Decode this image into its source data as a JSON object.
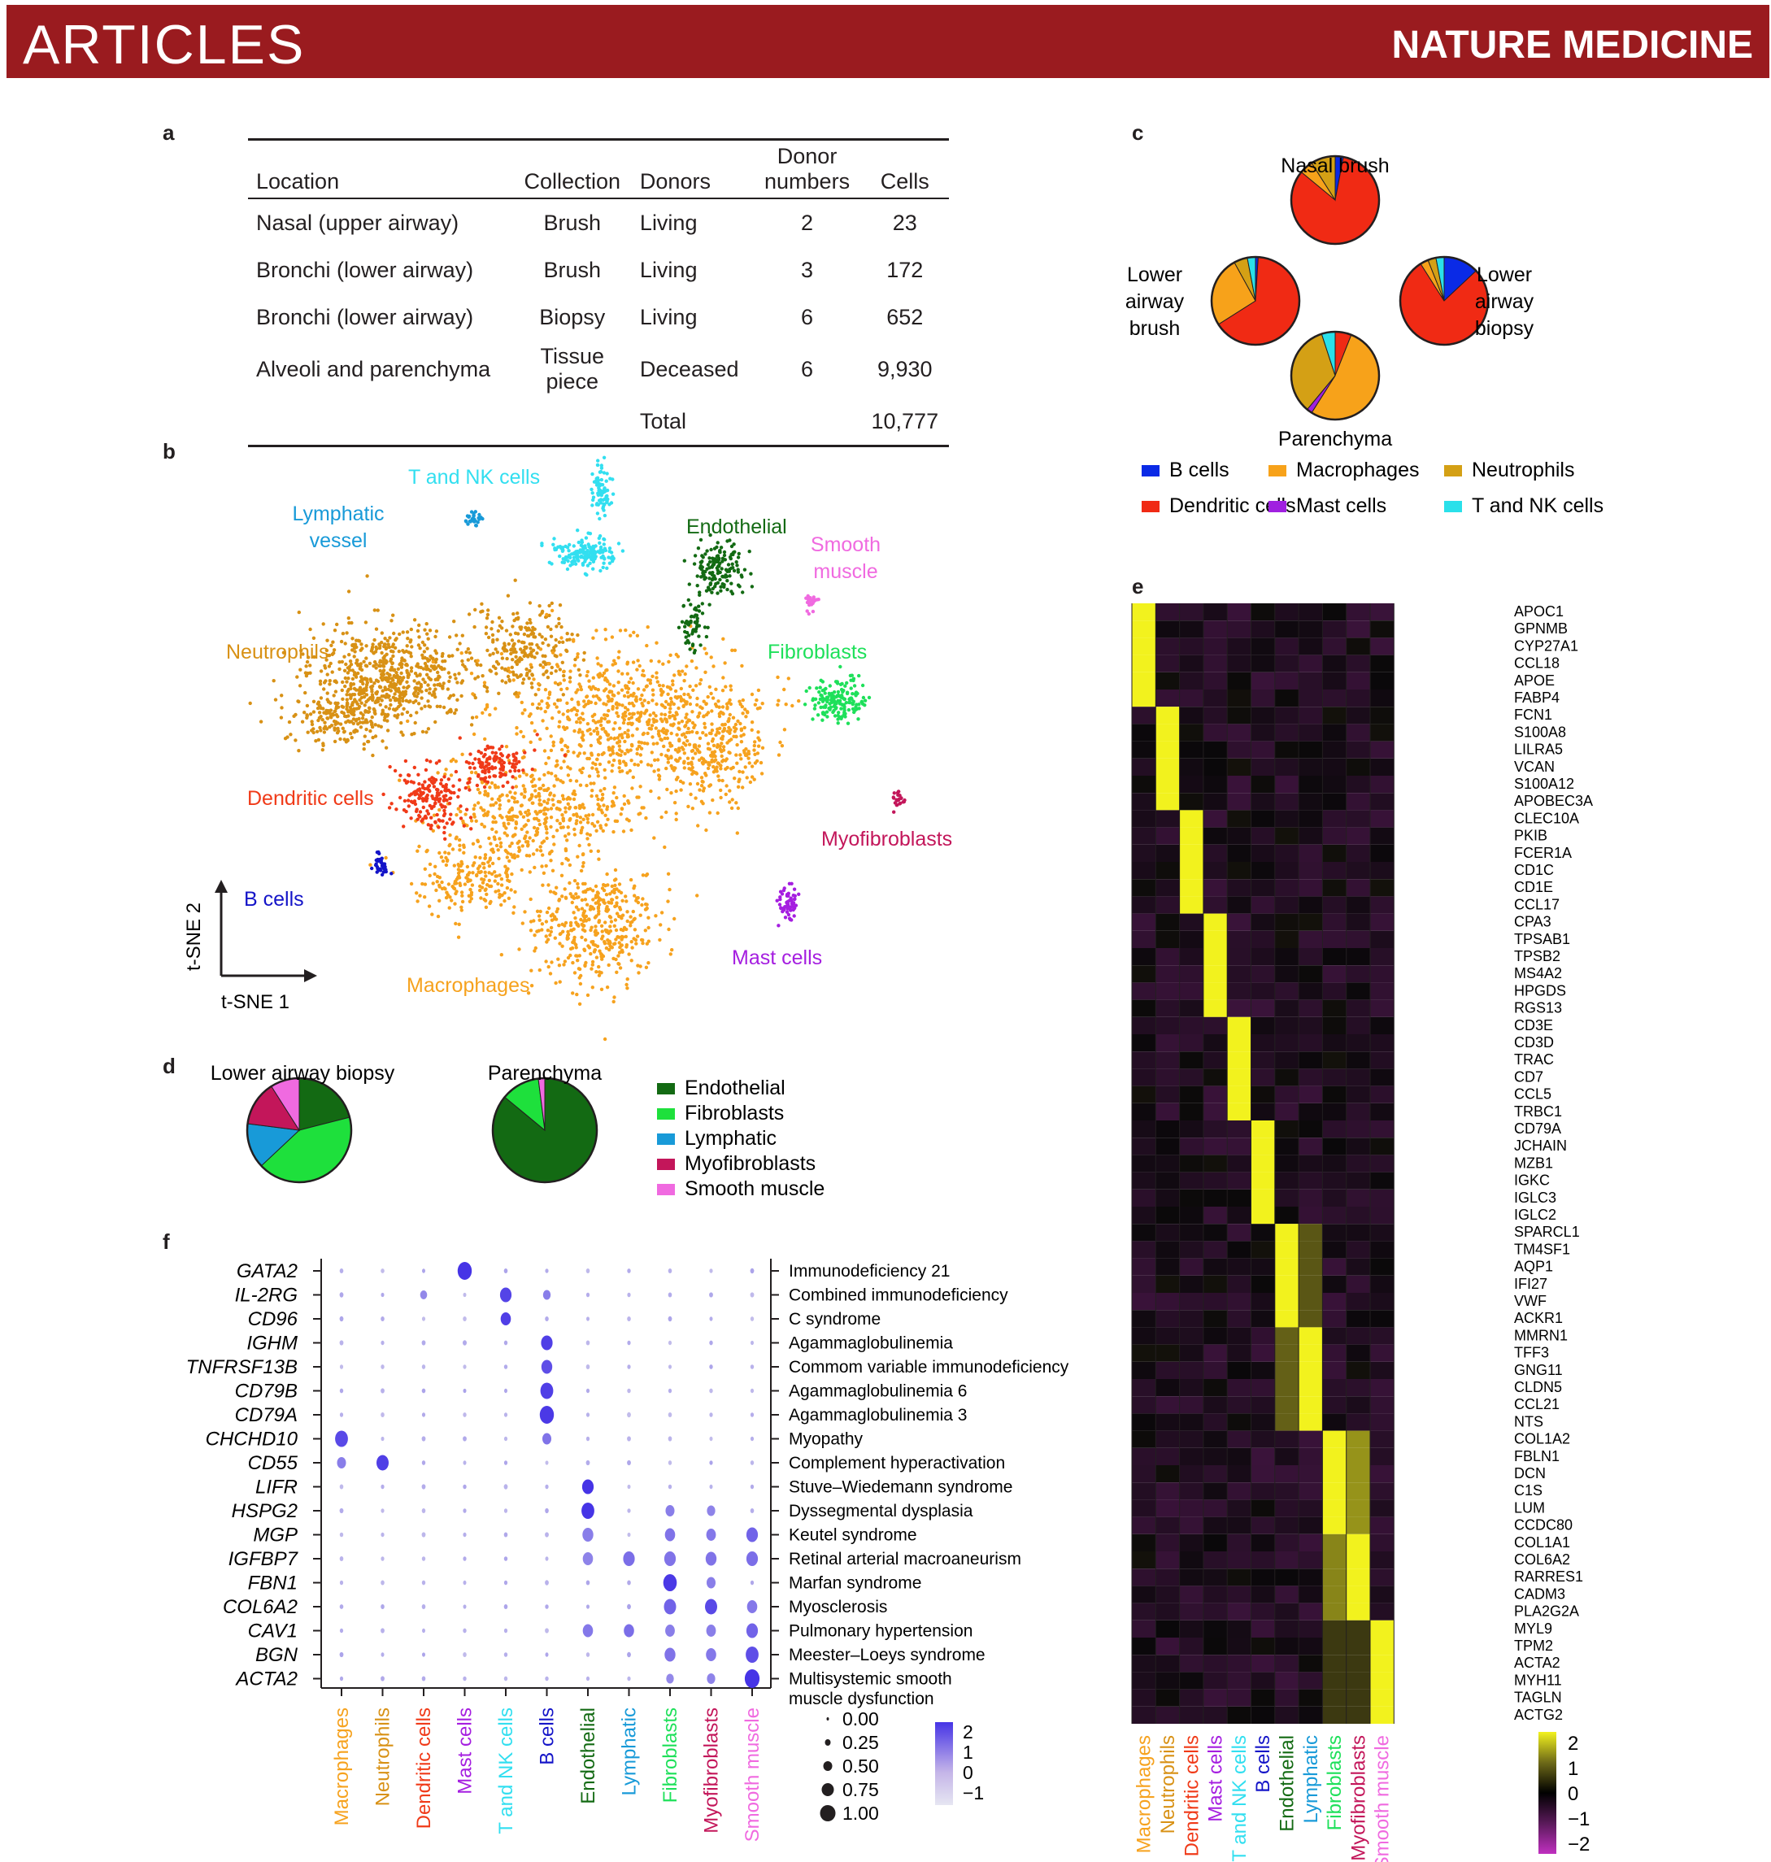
{
  "header": {
    "section": "ARTICLES",
    "journal": "NATURE MEDICINE"
  },
  "panels": {
    "a": "a",
    "b": "b",
    "c": "c",
    "d": "d",
    "e": "e",
    "f": "f"
  },
  "table_a": {
    "headers": {
      "location": "Location",
      "collection": "Collection",
      "donors": "Donors",
      "donor_numbers_1": "Donor",
      "donor_numbers_2": "numbers",
      "cells": "Cells"
    },
    "rows": [
      {
        "location": "Nasal (upper airway)",
        "collection": "Brush",
        "donors": "Living",
        "donor_numbers": "2",
        "cells": "23"
      },
      {
        "location": "Bronchi (lower airway)",
        "collection": "Brush",
        "donors": "Living",
        "donor_numbers": "3",
        "cells": "172"
      },
      {
        "location": "Bronchi (lower airway)",
        "collection": "Biopsy",
        "donors": "Living",
        "donor_numbers": "6",
        "cells": "652"
      },
      {
        "location": "Alveoli and parenchyma",
        "collection_1": "Tissue",
        "collection_2": "piece",
        "donors": "Deceased",
        "donor_numbers": "6",
        "cells": "9,930"
      }
    ],
    "total_label": "Total",
    "total_cells": "10,777"
  },
  "tsne": {
    "axis_y": "t-SNE 2",
    "axis_x": "t-SNE 1",
    "clusters": [
      {
        "name": "Macrophages",
        "color": "#f6a21e"
      },
      {
        "name": "Neutrophils",
        "color": "#d89115"
      },
      {
        "name": "Dendritic cells",
        "color": "#f03a18"
      },
      {
        "name": "B cells",
        "color": "#1414c8"
      },
      {
        "name": "T and NK cells",
        "color": "#32dff0"
      },
      {
        "name": "Lymphatic vessel",
        "color": "#189ad8"
      },
      {
        "name": "Endothelial",
        "color": "#136a13"
      },
      {
        "name": "Smooth muscle",
        "color": "#f06ae0"
      },
      {
        "name": "Fibroblasts",
        "color": "#1ee05a"
      },
      {
        "name": "Myofibroblasts",
        "color": "#c3165a"
      },
      {
        "name": "Mast cells",
        "color": "#a51ee0"
      }
    ],
    "labels": {
      "t_nk": "T and NK cells",
      "lymph_1": "Lymphatic",
      "lymph_2": "vessel",
      "endothelial": "Endothelial",
      "smooth_1": "Smooth",
      "smooth_2": "muscle",
      "neutrophils": "Neutrophils",
      "fibroblasts": "Fibroblasts",
      "dendritic": "Dendritic cells",
      "myofibroblasts": "Myofibroblasts",
      "b_cells": "B cells",
      "mast": "Mast cells",
      "macrophages": "Macrophages"
    }
  },
  "chart_data": [
    {
      "type": "pie",
      "panel": "c",
      "title": "Nasal brush",
      "categories": [
        "B cells",
        "Dendritic cells",
        "Macrophages",
        "Mast cells",
        "Neutrophils",
        "T and NK cells"
      ],
      "colors": [
        "#0a2ae6",
        "#f02a14",
        "#f7a21a",
        "#a020e0",
        "#d4a015",
        "#2ae0ea"
      ],
      "pies": [
        {
          "label": "Nasal brush",
          "values": [
            3,
            83,
            5,
            0,
            9,
            0
          ]
        },
        {
          "label_lines": [
            "Lower",
            "airway",
            "brush"
          ],
          "values": [
            1,
            65,
            26,
            0,
            5,
            3
          ]
        },
        {
          "label_lines": [
            "Lower",
            "airway",
            "biopsy"
          ],
          "values": [
            13,
            78,
            3,
            0,
            3,
            3
          ]
        },
        {
          "label": "Parenchyma",
          "values": [
            0,
            6,
            53,
            2,
            34,
            5
          ]
        }
      ]
    },
    {
      "type": "pie",
      "panel": "d",
      "categories": [
        "Endothelial",
        "Fibroblasts",
        "Lymphatic",
        "Myofibroblasts",
        "Smooth muscle"
      ],
      "colors": [
        "#136a13",
        "#1ee03c",
        "#189ad8",
        "#c3165a",
        "#f06ae0"
      ],
      "pies": [
        {
          "label": "Lower airway biopsy",
          "values": [
            21,
            42,
            14,
            14,
            9
          ]
        },
        {
          "label": "Parenchyma",
          "values": [
            86,
            12,
            0,
            0,
            2
          ]
        }
      ]
    },
    {
      "type": "heatmap",
      "panel": "e",
      "columns": [
        "Macrophages",
        "Neutrophils",
        "Dendritic cells",
        "Mast cells",
        "T and NK cells",
        "B cells",
        "Endothelial",
        "Lymphatic",
        "Fibroblasts",
        "Myofibroblasts",
        "Smooth muscle"
      ],
      "column_colors": [
        "#f6a21e",
        "#d89115",
        "#f03a18",
        "#a51ee0",
        "#32dff0",
        "#1414c8",
        "#136a13",
        "#189ad8",
        "#1ee05a",
        "#c3165a",
        "#f06ae0"
      ],
      "gene_groups": [
        [
          "APOC1",
          "GPNMB",
          "CYP27A1",
          "CCL18",
          "APOE",
          "FABP4"
        ],
        [
          "FCN1",
          "S100A8",
          "LILRA5",
          "VCAN",
          "S100A12",
          "APOBEC3A"
        ],
        [
          "CLEC10A",
          "PKIB",
          "FCER1A",
          "CD1C",
          "CD1E",
          "CCL17"
        ],
        [
          "CPA3",
          "TPSAB1",
          "TPSB2",
          "MS4A2",
          "HPGDS",
          "RGS13"
        ],
        [
          "CD3E",
          "CD3D",
          "TRAC",
          "CD7",
          "CCL5",
          "TRBC1"
        ],
        [
          "CD79A",
          "JCHAIN",
          "MZB1",
          "IGKC",
          "IGLC3",
          "IGLC2"
        ],
        [
          "SPARCL1",
          "TM4SF1",
          "AQP1",
          "IFI27",
          "VWF",
          "ACKR1"
        ],
        [
          "MMRN1",
          "TFF3",
          "GNG11",
          "CLDN5",
          "CCL21",
          "NTS"
        ],
        [
          "COL1A2",
          "FBLN1",
          "DCN",
          "C1S",
          "LUM",
          "CCDC80"
        ],
        [
          "COL1A1",
          "COL6A2",
          "RARRES1",
          "CADM3",
          "PLA2G2A"
        ],
        [
          "MYL9",
          "TPM2",
          "ACTA2",
          "MYH11",
          "TAGLN",
          "ACTG2"
        ]
      ],
      "legend_ticks": [
        "2",
        "1",
        "0",
        "−1",
        "−2"
      ],
      "range": [
        -2,
        2
      ]
    },
    {
      "type": "scatter",
      "panel": "f",
      "genes": [
        "GATA2",
        "IL-2RG",
        "CD96",
        "IGHM",
        "TNFRSF13B",
        "CD79B",
        "CD79A",
        "CHCHD10",
        "CD55",
        "LIFR",
        "HSPG2",
        "MGP",
        "IGFBP7",
        "FBN1",
        "COL6A2",
        "CAV1",
        "BGN",
        "ACTA2"
      ],
      "diseases": [
        "Immunodeficiency 21",
        "Combined immunodeficiency",
        "C syndrome",
        "Agammaglobulinemia",
        "Commom variable immunodeficiency",
        "Agammaglobulinemia 6",
        "Agammaglobulinemia 3",
        "Myopathy",
        "Complement hyperactivation",
        "Stuve–Wiedemann syndrome",
        "Dyssegmental dysplasia",
        "Keutel syndrome",
        "Retinal arterial macroaneurism",
        "Marfan syndrome",
        "Myosclerosis",
        "Pulmonary hypertension",
        "Meester–Loeys syndrome",
        "Multisystemic smooth"
      ],
      "disease_extra_line": "muscle dysfunction",
      "columns": [
        "Macrophages",
        "Neutrophils",
        "Dendritic cells",
        "Mast cells",
        "T and NK cells",
        "B cells",
        "Endothelial",
        "Lymphatic",
        "Fibroblasts",
        "Myofibroblasts",
        "Smooth muscle"
      ],
      "column_colors": [
        "#f6a21e",
        "#d89115",
        "#f03a18",
        "#a51ee0",
        "#32dff0",
        "#1414c8",
        "#136a13",
        "#189ad8",
        "#1ee05a",
        "#c3165a",
        "#f06ae0"
      ],
      "size_legend": [
        "0.00",
        "0.25",
        "0.50",
        "0.75",
        "1.00"
      ],
      "color_legend": [
        "2",
        "1",
        "0",
        "−1"
      ],
      "size_range": [
        0,
        1
      ],
      "color_range": [
        -1,
        2
      ]
    }
  ]
}
